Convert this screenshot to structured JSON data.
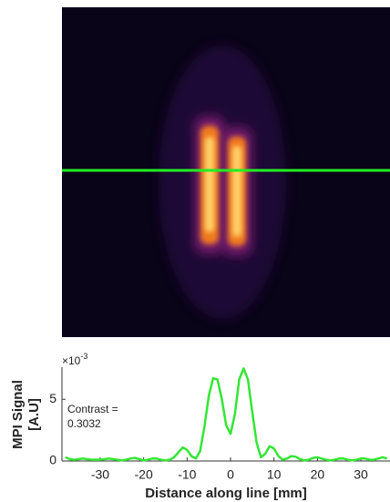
{
  "chart_data": {
    "type": "line",
    "x_label": "Distance along line [mm]",
    "y_label_lines": [
      "MPI Signal",
      "[A.U]"
    ],
    "scale_label": {
      "base": "×10",
      "exponent": "-3"
    },
    "annotation_lines": [
      "Contrast =",
      "0.3032"
    ],
    "color": "#33e633",
    "xlim": [
      -38.8,
      36.7
    ],
    "ylim": [
      0,
      7.6
    ],
    "xticks": [
      -30,
      -20,
      -10,
      0,
      10,
      20,
      30
    ],
    "yticks": [
      0,
      5
    ],
    "x": [
      -38,
      -37,
      -36,
      -35,
      -34,
      -33,
      -32,
      -31,
      -30,
      -29,
      -28,
      -27,
      -26,
      -25,
      -24,
      -23,
      -22,
      -21,
      -20,
      -19,
      -18,
      -17,
      -16,
      -15,
      -14,
      -13,
      -12,
      -11,
      -10,
      -9,
      -8,
      -7,
      -6,
      -5,
      -4,
      -3,
      -2,
      -1,
      0,
      1,
      2,
      3,
      4,
      5,
      6,
      7,
      8,
      9,
      10,
      11,
      12,
      13,
      14,
      15,
      16,
      17,
      18,
      19,
      20,
      21,
      22,
      23,
      24,
      25,
      26,
      27,
      28,
      29,
      30,
      31,
      32,
      33,
      34,
      35,
      36
    ],
    "values": [
      0.3,
      0.15,
      0.1,
      0.15,
      0.2,
      0.15,
      0.1,
      0.1,
      0.1,
      0.15,
      0.2,
      0.15,
      0.1,
      0.05,
      0.1,
      0.2,
      0.25,
      0.15,
      0.05,
      0.1,
      0.2,
      0.2,
      0.1,
      0.05,
      0.1,
      0.3,
      0.7,
      1.1,
      0.9,
      0.4,
      0.2,
      0.8,
      2.8,
      5.3,
      6.7,
      6.6,
      5.0,
      2.9,
      2.2,
      3.8,
      6.6,
      7.5,
      6.6,
      4.0,
      1.5,
      0.3,
      0.6,
      1.2,
      1.0,
      0.4,
      0.1,
      0.2,
      0.4,
      0.35,
      0.15,
      0.05,
      0.1,
      0.25,
      0.3,
      0.2,
      0.1,
      0.05,
      0.1,
      0.2,
      0.2,
      0.1,
      0.05,
      0.1,
      0.2,
      0.2,
      0.1,
      0.1,
      0.2,
      0.3,
      0.2
    ]
  }
}
